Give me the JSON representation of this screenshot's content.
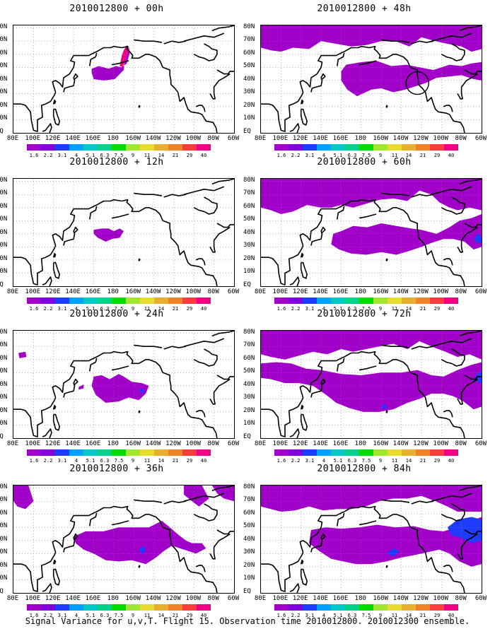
{
  "colorbar": {
    "labels": [
      "1.6",
      "2.2",
      "3.1",
      "4",
      "5.1",
      "6.3",
      "7.5",
      "9",
      "11",
      "14",
      "21",
      "29",
      "40"
    ],
    "colors": [
      "#a000c8",
      "#8200dc",
      "#1e3cff",
      "#00a0ff",
      "#00c8c8",
      "#00d28c",
      "#00dc00",
      "#a0e632",
      "#e6dc32",
      "#e6af2d",
      "#f08228",
      "#fa3c3c",
      "#f00082"
    ]
  },
  "map_axes": {
    "y_labels": [
      "80N",
      "70N",
      "60N",
      "50N",
      "40N",
      "30N",
      "20N",
      "10N",
      "EQ"
    ],
    "x_labels": [
      "80E",
      "100E",
      "120E",
      "140E",
      "160E",
      "180",
      "160W",
      "140W",
      "120W",
      "100W",
      "80W",
      "60W"
    ]
  },
  "panels": [
    {
      "title": "2010012800 + 00h",
      "forecast_hour": 0
    },
    {
      "title": "2010012800 + 48h",
      "forecast_hour": 48
    },
    {
      "title": "2010012800 + 12h",
      "forecast_hour": 12
    },
    {
      "title": "2010012800 + 60h",
      "forecast_hour": 60
    },
    {
      "title": "2010012800 + 24h",
      "forecast_hour": 24
    },
    {
      "title": "2010012800 + 72h",
      "forecast_hour": 72
    },
    {
      "title": "2010012800 + 36h",
      "forecast_hour": 36
    },
    {
      "title": "2010012800 + 84h",
      "forecast_hour": 84
    }
  ],
  "caption": "Signal Variance for u,v,T. Flight 15. Observation time 2010012800. 2010012300 ensemble."
}
